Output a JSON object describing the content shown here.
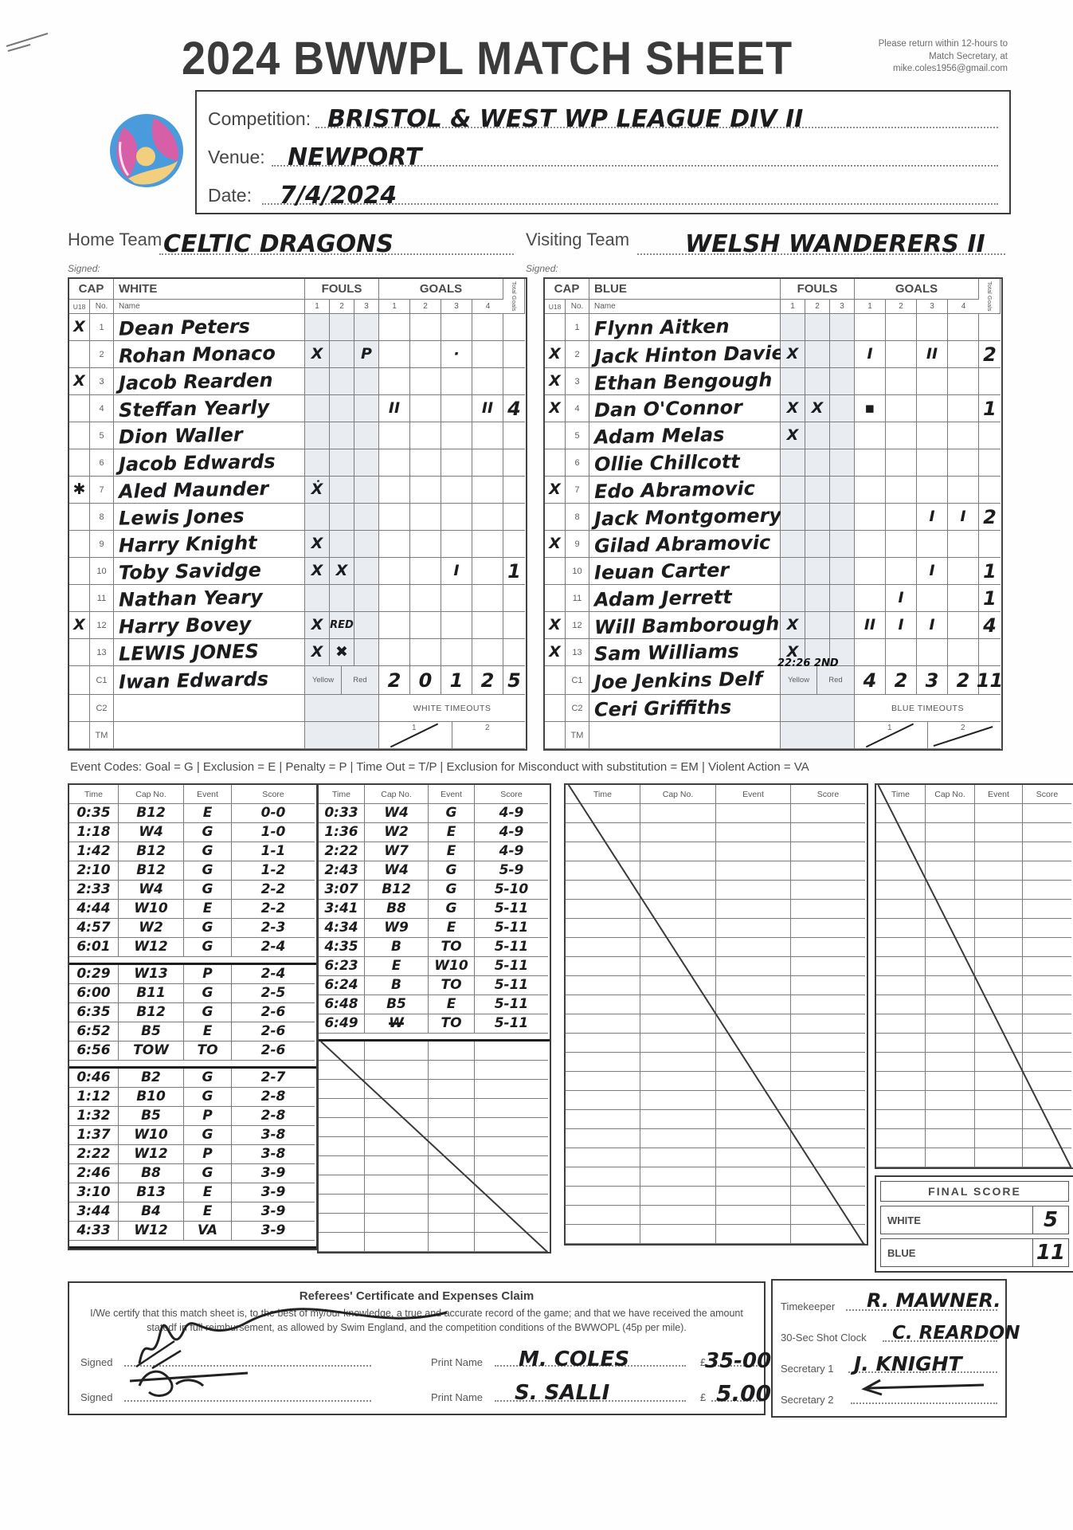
{
  "header": {
    "title": "2024 BWWPL MATCH SHEET",
    "return_note": "Please return within 12-hours to Match Secretary, at mike.coles1956@gmail.com"
  },
  "meta": {
    "competition_label": "Competition:",
    "competition_value": "BRISTOL & WEST  WP LEAGUE   DIV II",
    "venue_label": "Venue:",
    "venue_value": "NEWPORT",
    "date_label": "Date:",
    "date_value": "7/4/2024"
  },
  "teams": {
    "home_label": "Home Team",
    "home_value": "CELTIC DRAGONS",
    "visiting_label": "Visiting Team",
    "visiting_value": "WELSH WANDERERS II",
    "signed_label": "Signed:"
  },
  "roster_labels": {
    "cap": "CAP",
    "fouls": "FOULS",
    "goals": "GOALS",
    "total_goals": "Total Goals",
    "u18": "U18",
    "no": "No.",
    "name": "Name",
    "foul_cols": [
      "1",
      "2",
      "3"
    ],
    "goal_cols": [
      "1",
      "2",
      "3",
      "4"
    ],
    "yellow": "Yellow",
    "red": "Red",
    "timeout_nums": [
      "1",
      "2"
    ]
  },
  "roster": {
    "white": {
      "team_label": "WHITE",
      "timeouts_label": "WHITE TIMEOUTS",
      "timeout_struck": [
        true,
        false
      ],
      "players": [
        {
          "u18": "X",
          "no": "1",
          "name": "Dean Peters",
          "f": [
            "",
            "",
            ""
          ],
          "g": [
            "",
            "",
            "",
            ""
          ],
          "t": ""
        },
        {
          "u18": "",
          "no": "2",
          "name": "Rohan Monaco",
          "f": [
            "X",
            "",
            "P"
          ],
          "g": [
            "",
            "",
            "·",
            ""
          ],
          "t": ""
        },
        {
          "u18": "X",
          "no": "3",
          "name": "Jacob Rearden",
          "f": [
            "",
            "",
            ""
          ],
          "g": [
            "",
            "",
            "",
            ""
          ],
          "t": ""
        },
        {
          "u18": "",
          "no": "4",
          "name": "Steffan Yearly",
          "f": [
            "",
            "",
            ""
          ],
          "g": [
            "II",
            "",
            "",
            "II"
          ],
          "t": "4"
        },
        {
          "u18": "",
          "no": "5",
          "name": "Dion Waller",
          "f": [
            "",
            "",
            ""
          ],
          "g": [
            "",
            "",
            "",
            ""
          ],
          "t": ""
        },
        {
          "u18": "",
          "no": "6",
          "name": "Jacob Edwards",
          "f": [
            "",
            "",
            ""
          ],
          "g": [
            "",
            "",
            "",
            ""
          ],
          "t": ""
        },
        {
          "u18": "✱",
          "no": "7",
          "name": "Aled Maunder",
          "f": [
            "Ẋ",
            "",
            ""
          ],
          "g": [
            "",
            "",
            "",
            ""
          ],
          "t": ""
        },
        {
          "u18": "",
          "no": "8",
          "name": "Lewis Jones",
          "f": [
            "",
            "",
            ""
          ],
          "g": [
            "",
            "",
            "",
            ""
          ],
          "t": ""
        },
        {
          "u18": "",
          "no": "9",
          "name": "Harry Knight",
          "f": [
            "X",
            "",
            ""
          ],
          "g": [
            "",
            "",
            "",
            ""
          ],
          "t": ""
        },
        {
          "u18": "",
          "no": "10",
          "name": "Toby Savidge",
          "f": [
            "X",
            "X",
            ""
          ],
          "g": [
            "",
            "",
            "I",
            ""
          ],
          "t": "1"
        },
        {
          "u18": "",
          "no": "11",
          "name": "Nathan Yeary",
          "f": [
            "",
            "",
            ""
          ],
          "g": [
            "",
            "",
            "",
            ""
          ],
          "t": ""
        },
        {
          "u18": "X",
          "no": "12",
          "name": "Harry Bovey",
          "f": [
            "X",
            "RED",
            ""
          ],
          "g": [
            "",
            "",
            "",
            ""
          ],
          "t": ""
        },
        {
          "u18": "",
          "no": "13",
          "name": "LEWIS JONES",
          "f": [
            "X",
            "✖",
            ""
          ],
          "g": [
            "",
            "",
            "",
            ""
          ],
          "t": ""
        }
      ],
      "c1": {
        "no": "C1",
        "name": "Iwan Edwards",
        "note": "",
        "quarters": [
          "2",
          "0",
          "1",
          "2"
        ],
        "total": "5"
      },
      "c2": {
        "no": "C2",
        "name": ""
      },
      "tm": {
        "no": "TM"
      }
    },
    "blue": {
      "team_label": "BLUE",
      "timeouts_label": "BLUE TIMEOUTS",
      "timeout_struck": [
        true,
        true
      ],
      "players": [
        {
          "u18": "",
          "no": "1",
          "name": "Flynn Aitken",
          "f": [
            "",
            "",
            ""
          ],
          "g": [
            "",
            "",
            "",
            ""
          ],
          "t": ""
        },
        {
          "u18": "X",
          "no": "2",
          "name": "Jack Hinton Davies",
          "f": [
            "X",
            "",
            ""
          ],
          "g": [
            "I",
            "",
            "II",
            ""
          ],
          "t": "2"
        },
        {
          "u18": "X",
          "no": "3",
          "name": "Ethan Bengough",
          "f": [
            "",
            "",
            ""
          ],
          "g": [
            "",
            "",
            "",
            ""
          ],
          "t": ""
        },
        {
          "u18": "X",
          "no": "4",
          "name": "Dan O'Connor",
          "f": [
            "X",
            "X",
            ""
          ],
          "g": [
            "▪",
            "",
            "",
            ""
          ],
          "t": "1"
        },
        {
          "u18": "",
          "no": "5",
          "name": "Adam Melas",
          "f": [
            "X",
            "",
            ""
          ],
          "g": [
            "",
            "",
            "",
            ""
          ],
          "t": ""
        },
        {
          "u18": "",
          "no": "6",
          "name": "Ollie Chillcott",
          "f": [
            "",
            "",
            ""
          ],
          "g": [
            "",
            "",
            "",
            ""
          ],
          "t": ""
        },
        {
          "u18": "X",
          "no": "7",
          "name": "Edo Abramovic",
          "f": [
            "",
            "",
            ""
          ],
          "g": [
            "",
            "",
            "",
            ""
          ],
          "t": ""
        },
        {
          "u18": "",
          "no": "8",
          "name": "Jack Montgomery",
          "f": [
            "",
            "",
            ""
          ],
          "g": [
            "",
            "",
            "I",
            "I"
          ],
          "t": "2"
        },
        {
          "u18": "X",
          "no": "9",
          "name": "Gilad Abramovic",
          "f": [
            "",
            "",
            ""
          ],
          "g": [
            "",
            "",
            "",
            ""
          ],
          "t": ""
        },
        {
          "u18": "",
          "no": "10",
          "name": "Ieuan Carter",
          "f": [
            "",
            "",
            ""
          ],
          "g": [
            "",
            "",
            "I",
            ""
          ],
          "t": "1"
        },
        {
          "u18": "",
          "no": "11",
          "name": "Adam Jerrett",
          "f": [
            "",
            "",
            ""
          ],
          "g": [
            "",
            "I",
            "",
            ""
          ],
          "t": "1"
        },
        {
          "u18": "X",
          "no": "12",
          "name": "Will Bamborough",
          "f": [
            "X",
            "",
            ""
          ],
          "g": [
            "II",
            "I",
            "I",
            ""
          ],
          "t": "4"
        },
        {
          "u18": "X",
          "no": "13",
          "name": "Sam Williams",
          "f": [
            "X",
            "",
            ""
          ],
          "g": [
            "",
            "",
            "",
            ""
          ],
          "t": ""
        }
      ],
      "c1": {
        "no": "C1",
        "name": "Joe Jenkins Delf",
        "note": "22:26 2ND",
        "quarters": [
          "4",
          "2",
          "3",
          "2"
        ],
        "total": "11"
      },
      "c2": {
        "no": "C2",
        "name": "Ceri Griffiths"
      },
      "tm": {
        "no": "TM"
      }
    }
  },
  "event_codes": "Event Codes: Goal = G | Exclusion = E | Penalty = P | Time Out = T/P | Exclusion for Misconduct with substitution = EM | Violent Action = VA",
  "event_log": {
    "headers": [
      "Time",
      "Cap No.",
      "Event",
      "Score"
    ],
    "tables": [
      {
        "sections": [
          [
            [
              "0:35",
              "B12",
              "E",
              "0-0"
            ],
            [
              "1:18",
              "W4",
              "G",
              "1-0"
            ],
            [
              "1:42",
              "B12",
              "G",
              "1-1"
            ],
            [
              "2:10",
              "B12",
              "G",
              "1-2"
            ],
            [
              "2:33",
              "W4",
              "G",
              "2-2"
            ],
            [
              "4:44",
              "W10",
              "E",
              "2-2"
            ],
            [
              "4:57",
              "W2",
              "G",
              "2-3"
            ],
            [
              "6:01",
              "W12",
              "G",
              "2-4"
            ]
          ],
          [
            [
              "0:29",
              "W13",
              "P",
              "2-4"
            ],
            [
              "6:00",
              "B11",
              "G",
              "2-5"
            ],
            [
              "6:35",
              "B12",
              "G",
              "2-6"
            ],
            [
              "6:52",
              "B5",
              "E",
              "2-6"
            ],
            [
              "6:56",
              "TOW",
              "TO",
              "2-6"
            ]
          ],
          [
            [
              "0:46",
              "B2",
              "G",
              "2-7"
            ],
            [
              "1:12",
              "B10",
              "G",
              "2-8"
            ],
            [
              "1:32",
              "B5",
              "P",
              "2-8"
            ],
            [
              "1:37",
              "W10",
              "G",
              "3-8"
            ],
            [
              "2:22",
              "W12",
              "P",
              "3-8"
            ],
            [
              "2:46",
              "B8",
              "G",
              "3-9"
            ],
            [
              "3:10",
              "B13",
              "E",
              "3-9"
            ],
            [
              "3:44",
              "B4",
              "E",
              "3-9"
            ],
            [
              "4:33",
              "W12",
              "VA",
              "3-9"
            ]
          ]
        ],
        "empty_rows": 0,
        "strike": "none",
        "end_sep": true
      },
      {
        "sections": [
          [
            [
              "0:33",
              "W4",
              "G",
              "4-9"
            ],
            [
              "1:36",
              "W2",
              "E",
              "4-9"
            ],
            [
              "2:22",
              "W7",
              "E",
              "4-9"
            ],
            [
              "2:43",
              "W4",
              "G",
              "5-9"
            ],
            [
              "3:07",
              "B12",
              "G",
              "5-10"
            ],
            [
              "3:41",
              "B8",
              "G",
              "5-11"
            ],
            [
              "4:34",
              "W9",
              "E",
              "5-11"
            ],
            [
              "4:35",
              "B",
              "TO",
              "5-11"
            ],
            [
              "6:23",
              "E",
              "W10",
              "5-11"
            ],
            [
              "6:24",
              "B",
              "TO",
              "5-11"
            ],
            [
              "6:48",
              "B5",
              "E",
              "5-11"
            ],
            [
              "6:49",
              "W",
              "TO",
              "5-11"
            ]
          ]
        ],
        "empty_rows": 11,
        "strike": "empty",
        "end_sep": false,
        "scribbles": [
          [
            11,
            1
          ]
        ]
      },
      {
        "sections": [],
        "empty_rows": 23,
        "strike": "full",
        "end_sep": false
      },
      {
        "sections": [],
        "empty_rows": 19,
        "strike": "full",
        "end_sep": false
      }
    ]
  },
  "final_score": {
    "title": "FINAL SCORE",
    "white_label": "WHITE",
    "white_value": "5",
    "blue_label": "BLUE",
    "blue_value": "11"
  },
  "referees": {
    "title": "Referees' Certificate and Expenses Claim",
    "body": "I/We certify that this match sheet is, to the best of my/our knowledge, a true and accurate record of the game; and that we have received the amount statedf in full reimbursement, as allowed by Swim England, and the competition conditions of the BWWOPL (45p per mile).",
    "signed_label": "Signed",
    "print_name_label": "Print Name",
    "currency_label": "£",
    "rows": [
      {
        "print_name": "M. COLES",
        "amount": "35-00"
      },
      {
        "print_name": "S. SALLI",
        "amount": "5.00"
      }
    ]
  },
  "officials": {
    "timekeeper_label": "Timekeeper",
    "timekeeper_value": "R. MAWNER.",
    "shot_clock_label": "30-Sec Shot Clock",
    "shot_clock_value": "C. REARDON",
    "secretary1_label": "Secretary 1",
    "secretary1_value": "J. KNIGHT",
    "secretary2_label": "Secretary 2",
    "secretary2_value": ""
  }
}
